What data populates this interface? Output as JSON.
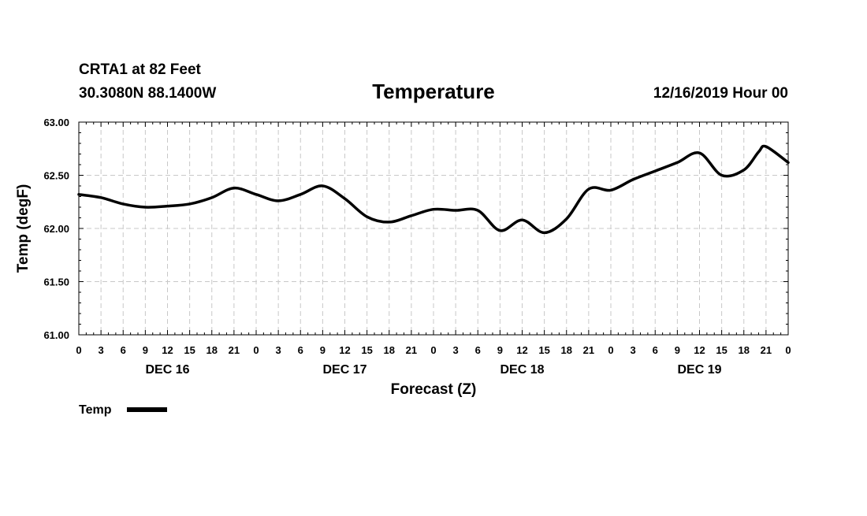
{
  "header": {
    "station": "CRTA1 at 82 Feet",
    "coords": "30.3080N 88.1400W",
    "datetime": "12/16/2019 Hour 00"
  },
  "chart_data": {
    "type": "line",
    "title": "Temperature",
    "xlabel": "Forecast (Z)",
    "ylabel": "Temp (degF)",
    "ylim": [
      61.0,
      63.0
    ],
    "yticks": [
      "61.00",
      "61.50",
      "62.00",
      "62.50",
      "63.00"
    ],
    "xlim": [
      0,
      96
    ],
    "xtick_labels": [
      "0",
      "3",
      "6",
      "9",
      "12",
      "15",
      "18",
      "21",
      "0",
      "3",
      "6",
      "9",
      "12",
      "15",
      "18",
      "21",
      "0",
      "3",
      "6",
      "9",
      "12",
      "15",
      "18",
      "21",
      "0",
      "3",
      "6",
      "9",
      "12",
      "15",
      "18",
      "21",
      "0"
    ],
    "day_labels": [
      {
        "label": "DEC 16",
        "hour": 12
      },
      {
        "label": "DEC 17",
        "hour": 36
      },
      {
        "label": "DEC 18",
        "hour": 60
      },
      {
        "label": "DEC 19",
        "hour": 84
      }
    ],
    "grid": true,
    "legend_position": "bottom-left",
    "series": [
      {
        "name": "Temp",
        "color": "#000000",
        "x": [
          0,
          3,
          6,
          9,
          12,
          15,
          18,
          21,
          24,
          27,
          30,
          33,
          36,
          39,
          42,
          45,
          48,
          51,
          54,
          57,
          60,
          63,
          66,
          69,
          72,
          75,
          78,
          81,
          84,
          87,
          90,
          92,
          93,
          96
        ],
        "values": [
          62.32,
          62.29,
          62.23,
          62.2,
          62.21,
          62.23,
          62.29,
          62.38,
          62.32,
          62.26,
          62.32,
          62.4,
          62.28,
          62.11,
          62.06,
          62.12,
          62.18,
          62.17,
          62.17,
          61.98,
          62.08,
          61.96,
          62.09,
          62.37,
          62.36,
          62.46,
          62.54,
          62.62,
          62.71,
          62.5,
          62.55,
          62.72,
          62.77,
          62.62
        ]
      }
    ]
  }
}
